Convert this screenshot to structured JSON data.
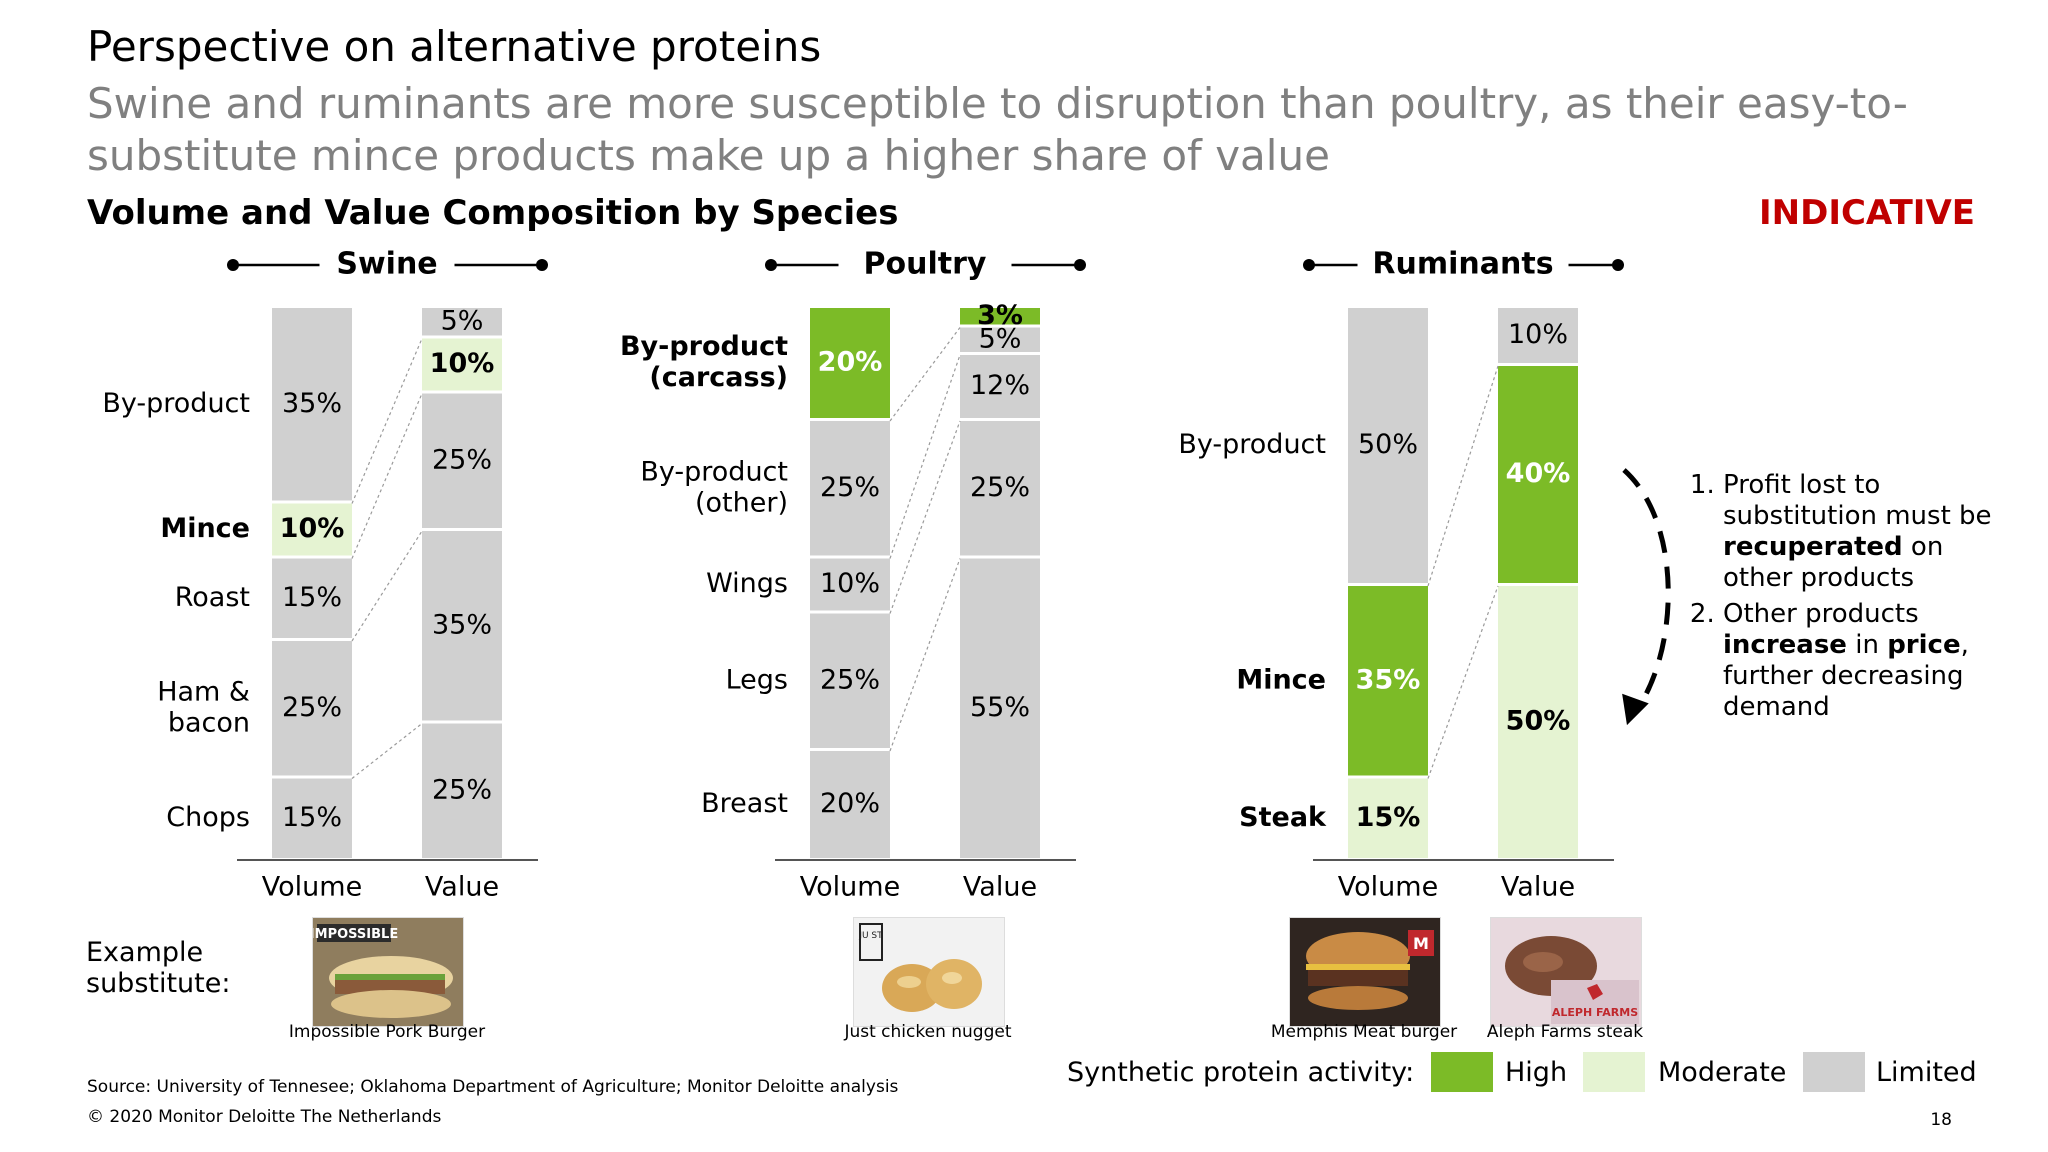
{
  "title": "Perspective on alternative proteins",
  "subtitle": "Swine and ruminants are more susceptible to disruption than poultry, as their easy-to-substitute mince products make up a higher share of value",
  "section_title": "Volume and Value Composition by Species",
  "indicative": "INDICATIVE",
  "colors": {
    "High": "#7cbb27",
    "Moderate": "#e5f3d2",
    "Limited": "#d0d0d0",
    "indicative": "#c00000"
  },
  "chart_data": [
    {
      "type": "bar",
      "title": "Swine",
      "categories": [
        "Volume",
        "Value"
      ],
      "volume": [
        {
          "label": "Chops",
          "value": 15,
          "activity": "Limited"
        },
        {
          "label": "Ham & bacon",
          "value": 25,
          "activity": "Limited"
        },
        {
          "label": "Roast",
          "value": 15,
          "activity": "Limited"
        },
        {
          "label": "Mince",
          "value": 10,
          "activity": "Moderate",
          "bold": true
        },
        {
          "label": "By-product",
          "value": 35,
          "activity": "Limited"
        }
      ],
      "value": [
        {
          "value": 25,
          "activity": "Limited"
        },
        {
          "value": 35,
          "activity": "Limited"
        },
        {
          "value": 25,
          "activity": "Limited"
        },
        {
          "value": 10,
          "activity": "Moderate",
          "bold": true
        },
        {
          "value": 5,
          "activity": "Limited"
        }
      ]
    },
    {
      "type": "bar",
      "title": "Poultry",
      "categories": [
        "Volume",
        "Value"
      ],
      "volume": [
        {
          "label": "Breast",
          "value": 20,
          "activity": "Limited"
        },
        {
          "label": "Legs",
          "value": 25,
          "activity": "Limited"
        },
        {
          "label": "Wings",
          "value": 10,
          "activity": "Limited"
        },
        {
          "label": "By-product (other)",
          "value": 25,
          "activity": "Limited"
        },
        {
          "label": "By-product (carcass)",
          "value": 20,
          "activity": "High",
          "bold": true
        }
      ],
      "value": [
        {
          "value": 55,
          "activity": "Limited"
        },
        {
          "value": 25,
          "activity": "Limited"
        },
        {
          "value": 12,
          "activity": "Limited"
        },
        {
          "value": 5,
          "activity": "Limited"
        },
        {
          "value": 3,
          "activity": "High",
          "bold": true
        }
      ]
    },
    {
      "type": "bar",
      "title": "Ruminants",
      "categories": [
        "Volume",
        "Value"
      ],
      "volume": [
        {
          "label": "Steak",
          "value": 15,
          "activity": "Moderate",
          "bold": true
        },
        {
          "label": "Mince",
          "value": 35,
          "activity": "High",
          "bold": true
        },
        {
          "label": "By-product",
          "value": 50,
          "activity": "Limited"
        }
      ],
      "value": [
        {
          "value": 50,
          "activity": "Moderate",
          "bold": true
        },
        {
          "value": 40,
          "activity": "High",
          "bold": true
        },
        {
          "value": 10,
          "activity": "Limited"
        }
      ]
    }
  ],
  "example_label": "Example substitute:",
  "examples": [
    {
      "caption": "Impossible Pork Burger",
      "brand": "IMPOSSIBLE"
    },
    {
      "caption": "Just chicken nugget",
      "brand": "JU ST"
    },
    {
      "caption": "Memphis Meat burger",
      "brand": "M"
    },
    {
      "caption": "Aleph Farms steak",
      "brand": "ALEPH FARMS"
    }
  ],
  "notes": [
    {
      "pre": "Profit lost to substitution must be ",
      "bold": "recuperated",
      "post": " on other products"
    },
    {
      "pre": "Other products ",
      "bold": "increase",
      "mid": " in ",
      "bold2": "price",
      "post": ", further decreasing demand"
    }
  ],
  "legend": {
    "label": "Synthetic protein activity:",
    "items": [
      {
        "name": "High",
        "color": "#7cbb27"
      },
      {
        "name": "Moderate",
        "color": "#e5f3d2"
      },
      {
        "name": "Limited",
        "color": "#d0d0d0"
      }
    ]
  },
  "source": "Source: University of Tennesee; Oklahoma Department of Agriculture; Monitor Deloitte analysis",
  "copyright": "© 2020 Monitor Deloitte The Netherlands",
  "page_number": "18"
}
